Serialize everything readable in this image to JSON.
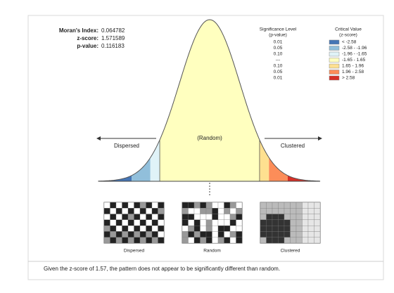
{
  "report": {
    "stats": [
      {
        "label": "Moran's Index:",
        "value": "0.064782"
      },
      {
        "label": "z-score:",
        "value": "1.571589"
      },
      {
        "label": "p-value:",
        "value": "0.116183"
      }
    ],
    "significance_header": [
      "Significance Level",
      "(p-value)"
    ],
    "critical_header": [
      "Critical Value",
      "(z-score)"
    ],
    "rows": [
      {
        "p": "0.01",
        "z": "< -2.58"
      },
      {
        "p": "0.05",
        "z": "-2.58 - -1.96"
      },
      {
        "p": "0.10",
        "z": "-1.96 - -1.65"
      },
      {
        "p": "---",
        "z": "-1.65 - 1.65"
      },
      {
        "p": "0.10",
        "z": "1.65 - 1.96"
      },
      {
        "p": "0.05",
        "z": "1.96 - 2.58"
      },
      {
        "p": "0.01",
        "z": "> 2.58"
      }
    ],
    "curve_labels": {
      "left": "Dispersed",
      "center": "(Random)",
      "right": "Clustered"
    },
    "patterns": [
      "Dispersed",
      "Random",
      "Clustered"
    ],
    "footer": "Given the z-score of 1.57, the pattern does not appear to be significantly different than random."
  }
}
